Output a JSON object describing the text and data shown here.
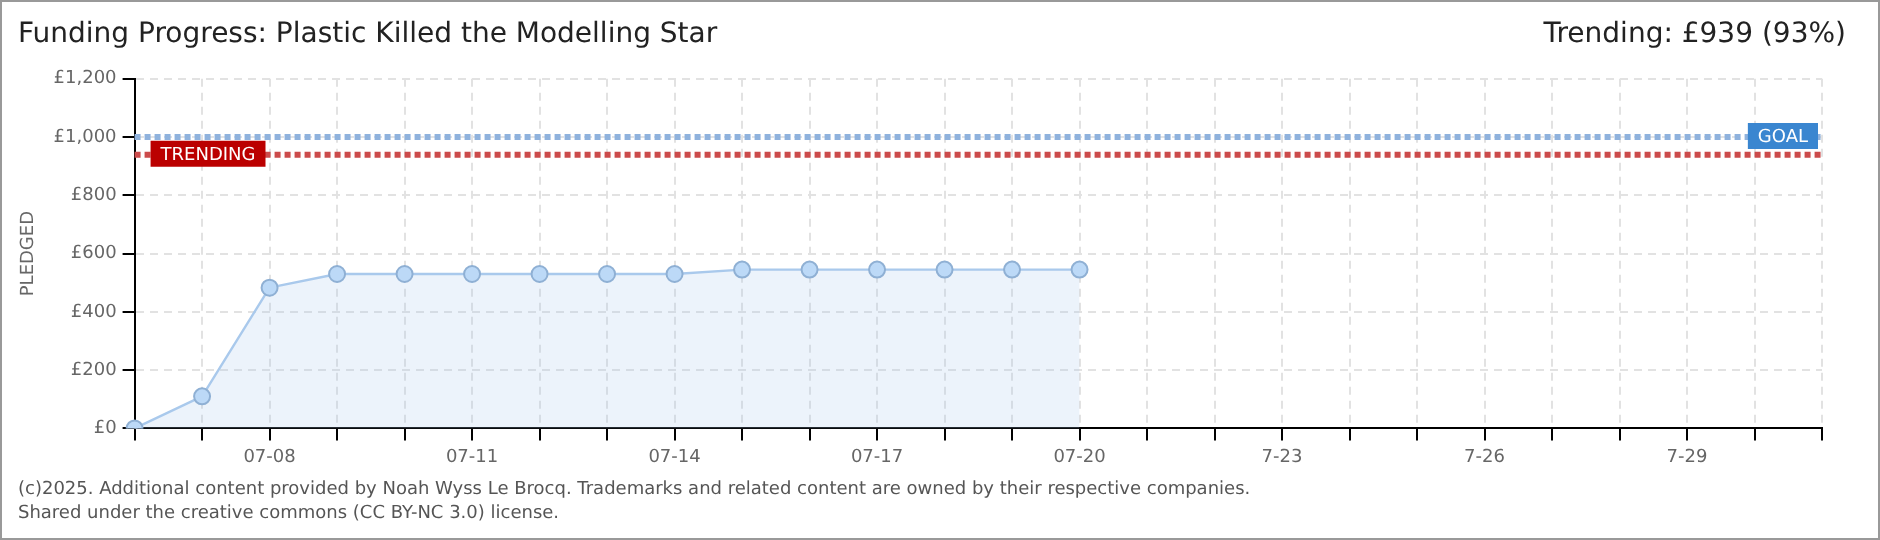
{
  "chart_data": {
    "type": "area",
    "title": "Funding Progress: Plastic Killed the Modelling Star",
    "subtitle": "Trending: £939 (93%)",
    "ylabel": "PLEDGED",
    "categories": [
      null,
      null,
      "07-08",
      null,
      null,
      "07-11",
      null,
      null,
      "07-14",
      null,
      null,
      "07-17",
      null,
      null,
      "07-20",
      null,
      null,
      "7-23",
      null,
      null,
      "7-26",
      null,
      null,
      "7-29",
      null,
      null
    ],
    "series": [
      {
        "color": "#a9c9ec",
        "values": [
          0,
          110,
          483,
          530,
          530,
          530,
          530,
          530,
          530,
          545,
          545,
          545,
          545,
          545,
          545,
          null,
          null,
          null,
          null,
          null,
          null,
          null,
          null,
          null,
          null,
          null
        ]
      }
    ],
    "ylim": [
      0,
      1200
    ],
    "yticks": [
      {
        "value": 0,
        "label": "£0"
      },
      {
        "value": 200,
        "label": "£200"
      },
      {
        "value": 400,
        "label": "£400"
      },
      {
        "value": 600,
        "label": "£600"
      },
      {
        "value": 800,
        "label": "£800"
      },
      {
        "value": 1000,
        "label": "£1,000"
      },
      {
        "value": 1200,
        "label": "£1,200"
      }
    ],
    "ref_lines": [
      {
        "axis": "y",
        "value": 1000,
        "label": "GOAL",
        "color": "#8fb2dd",
        "line_style": "dotted"
      },
      {
        "axis": "y",
        "value": 939,
        "label": "TRENDING",
        "color": "#cc4b4b",
        "line_style": "dotted"
      }
    ],
    "grid": true,
    "legend": false,
    "marker": "circle",
    "line_style": "solid",
    "annotations": [
      "(c)2025. Additional content provided by Noah Wyss Le Brocq. Trademarks and related content are owned by their respective companies.",
      "Shared under the creative commons (CC BY-NC 3.0) license."
    ]
  }
}
